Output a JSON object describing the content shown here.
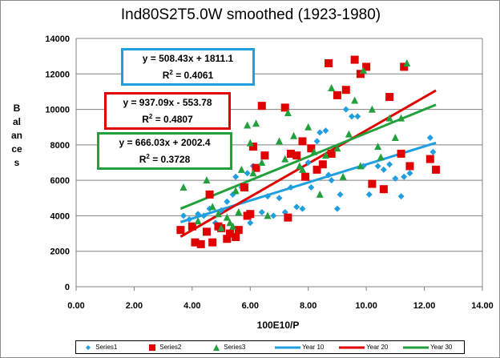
{
  "chart_data": {
    "type": "scatter",
    "title": "Ind80S2T5.0W smoothed (1923-1980)",
    "xlabel": "100E10/P",
    "ylabel": "Balances",
    "xlim": [
      0,
      14
    ],
    "ylim": [
      0,
      14000
    ],
    "x_ticks": [
      "0.00",
      "2.00",
      "4.00",
      "6.00",
      "8.00",
      "10.00",
      "12.00",
      "14.00"
    ],
    "y_ticks": [
      "0",
      "2000",
      "4000",
      "6000",
      "8000",
      "10000",
      "12000",
      "14000"
    ],
    "grid": true,
    "legend_position": "bottom",
    "series": [
      {
        "name": "Series1",
        "marker": "diamond",
        "color": "#1f9fe0",
        "points": [
          [
            3.7,
            4000
          ],
          [
            3.9,
            3800
          ],
          [
            4.2,
            4100
          ],
          [
            4.4,
            4000
          ],
          [
            4.6,
            4400
          ],
          [
            4.8,
            3600
          ],
          [
            5.0,
            4300
          ],
          [
            5.2,
            4800
          ],
          [
            5.4,
            5200
          ],
          [
            5.5,
            6200
          ],
          [
            5.7,
            5600
          ],
          [
            5.9,
            6400
          ],
          [
            6.0,
            3600
          ],
          [
            6.1,
            6800
          ],
          [
            6.4,
            4200
          ],
          [
            6.6,
            5100
          ],
          [
            6.8,
            4000
          ],
          [
            7.0,
            5000
          ],
          [
            7.2,
            4200
          ],
          [
            7.4,
            5600
          ],
          [
            7.6,
            4500
          ],
          [
            7.8,
            4400
          ],
          [
            8.0,
            7000
          ],
          [
            8.1,
            5600
          ],
          [
            8.3,
            8200
          ],
          [
            8.4,
            8700
          ],
          [
            8.6,
            8800
          ],
          [
            8.7,
            6300
          ],
          [
            8.8,
            6000
          ],
          [
            9.0,
            4400
          ],
          [
            9.1,
            5200
          ],
          [
            9.3,
            10000
          ],
          [
            9.5,
            9600
          ],
          [
            9.7,
            9600
          ],
          [
            9.9,
            6800
          ],
          [
            10.1,
            5200
          ],
          [
            10.4,
            6800
          ],
          [
            10.6,
            6600
          ],
          [
            10.8,
            6900
          ],
          [
            11.0,
            6100
          ],
          [
            11.2,
            5100
          ],
          [
            11.3,
            6200
          ],
          [
            11.5,
            6400
          ],
          [
            12.2,
            8400
          ],
          [
            12.3,
            7600
          ]
        ]
      },
      {
        "name": "Series2",
        "marker": "square",
        "color": "#e00000",
        "points": [
          [
            3.6,
            3200
          ],
          [
            4.0,
            3400
          ],
          [
            4.1,
            2500
          ],
          [
            4.3,
            2400
          ],
          [
            4.5,
            3100
          ],
          [
            4.6,
            5200
          ],
          [
            4.7,
            2500
          ],
          [
            4.9,
            3400
          ],
          [
            5.0,
            3300
          ],
          [
            5.2,
            2700
          ],
          [
            5.3,
            3000
          ],
          [
            5.5,
            2800
          ],
          [
            5.6,
            3200
          ],
          [
            5.8,
            5600
          ],
          [
            5.9,
            4000
          ],
          [
            6.0,
            4100
          ],
          [
            6.1,
            7900
          ],
          [
            6.2,
            6700
          ],
          [
            6.4,
            10200
          ],
          [
            6.5,
            7400
          ],
          [
            7.2,
            10100
          ],
          [
            7.3,
            3900
          ],
          [
            7.4,
            7500
          ],
          [
            7.6,
            7400
          ],
          [
            7.8,
            8200
          ],
          [
            7.9,
            6200
          ],
          [
            8.1,
            7800
          ],
          [
            8.3,
            6600
          ],
          [
            8.5,
            6900
          ],
          [
            8.7,
            12600
          ],
          [
            8.8,
            7500
          ],
          [
            9.0,
            10800
          ],
          [
            9.3,
            11100
          ],
          [
            9.6,
            12800
          ],
          [
            9.8,
            12000
          ],
          [
            10.0,
            12400
          ],
          [
            10.2,
            5800
          ],
          [
            10.6,
            5500
          ],
          [
            10.8,
            10700
          ],
          [
            11.2,
            7500
          ],
          [
            11.3,
            12400
          ],
          [
            11.5,
            6800
          ],
          [
            12.2,
            7200
          ],
          [
            12.4,
            6600
          ]
        ]
      },
      {
        "name": "Series3",
        "marker": "triangle",
        "color": "#22a03c",
        "points": [
          [
            3.7,
            5600
          ],
          [
            4.2,
            3700
          ],
          [
            4.5,
            6000
          ],
          [
            4.7,
            4500
          ],
          [
            4.9,
            4100
          ],
          [
            5.0,
            3300
          ],
          [
            5.2,
            3900
          ],
          [
            5.3,
            3600
          ],
          [
            5.4,
            3400
          ],
          [
            5.5,
            5400
          ],
          [
            5.6,
            4200
          ],
          [
            5.7,
            6600
          ],
          [
            5.9,
            9100
          ],
          [
            6.0,
            8100
          ],
          [
            6.1,
            6400
          ],
          [
            6.2,
            9200
          ],
          [
            6.4,
            7000
          ],
          [
            6.6,
            4000
          ],
          [
            7.0,
            8200
          ],
          [
            7.2,
            7200
          ],
          [
            7.3,
            9800
          ],
          [
            7.5,
            8500
          ],
          [
            7.7,
            6800
          ],
          [
            7.8,
            6600
          ],
          [
            8.0,
            9000
          ],
          [
            8.2,
            7600
          ],
          [
            8.4,
            5200
          ],
          [
            8.6,
            7400
          ],
          [
            8.8,
            11200
          ],
          [
            9.0,
            7800
          ],
          [
            9.2,
            6200
          ],
          [
            9.4,
            8600
          ],
          [
            9.6,
            10500
          ],
          [
            9.8,
            6800
          ],
          [
            9.9,
            12200
          ],
          [
            10.2,
            10000
          ],
          [
            10.4,
            7900
          ],
          [
            10.5,
            7300
          ],
          [
            10.8,
            9500
          ],
          [
            11.0,
            8400
          ],
          [
            11.2,
            9500
          ],
          [
            11.4,
            12600
          ]
        ]
      }
    ],
    "trendlines": [
      {
        "name": "Year 10",
        "color": "#1f9fe0",
        "slope": 508.43,
        "intercept": 1811.1,
        "x_range": [
          3.6,
          12.4
        ],
        "equation": "y = 508.43x + 1811.1",
        "r2_label": "R",
        "r2_value": " = 0.4061"
      },
      {
        "name": "Year 20",
        "color": "#e00000",
        "slope": 937.09,
        "intercept": -553.78,
        "x_range": [
          3.6,
          12.4
        ],
        "equation": "y = 937.09x - 553.78",
        "r2_label": "R",
        "r2_value": " = 0.4807"
      },
      {
        "name": "Year 30",
        "color": "#22a03c",
        "slope": 666.03,
        "intercept": 2002.4,
        "x_range": [
          3.6,
          12.4
        ],
        "equation": "y = 666.03x + 2002.4",
        "r2_label": "R",
        "r2_value": " = 0.3728"
      }
    ]
  },
  "legend": {
    "series1": "Series1",
    "series2": "Series2",
    "series3": "Series3",
    "year10": "Year 10",
    "year20": "Year 20",
    "year30": "Year 30"
  },
  "r2_superscript": "2"
}
